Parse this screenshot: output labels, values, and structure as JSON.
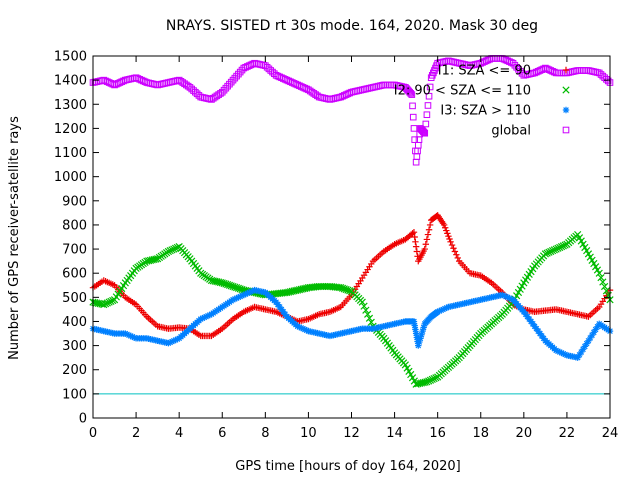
{
  "chart_data": {
    "type": "scatter",
    "title": "NRAYS. SISTED rt 30s mode. 164, 2020. Mask 30 deg",
    "xlabel": "GPS time [hours of doy 164, 2020]",
    "ylabel": "Number of GPS receiver-satellite rays",
    "xlim": [
      0,
      24
    ],
    "ylim": [
      0,
      1500
    ],
    "xticks": [
      "0",
      "2",
      "4",
      "6",
      "8",
      "10",
      "12",
      "14",
      "16",
      "18",
      "20",
      "22",
      "24"
    ],
    "yticks": [
      "0",
      "100",
      "200",
      "300",
      "400",
      "500",
      "600",
      "700",
      "800",
      "900",
      "1000",
      "1100",
      "1200",
      "1300",
      "1400",
      "1500"
    ],
    "grid": false,
    "legend_position": "top-right",
    "threshold_line": {
      "y": 100,
      "color": "#00c0c0"
    },
    "series": [
      {
        "name": "I1: SZA <= 90",
        "legend_label": "I1: SZA <= 90",
        "marker": "+",
        "color": "#ee0000",
        "x": [
          0,
          0.5,
          1,
          1.5,
          2,
          2.5,
          3,
          3.5,
          4,
          4.5,
          5,
          5.5,
          6,
          6.5,
          7,
          7.5,
          8,
          8.5,
          9,
          9.5,
          10,
          10.5,
          11,
          11.5,
          12,
          12.5,
          13,
          13.5,
          14,
          14.5,
          14.9,
          15.1,
          15.4,
          15.7,
          16,
          16.3,
          16.6,
          17,
          17.5,
          18,
          18.5,
          19,
          19.5,
          20,
          20.5,
          21,
          21.5,
          22,
          22.5,
          23,
          23.5,
          24
        ],
        "y": [
          540,
          570,
          550,
          500,
          470,
          420,
          380,
          370,
          375,
          370,
          340,
          340,
          370,
          410,
          440,
          460,
          450,
          440,
          420,
          400,
          410,
          430,
          440,
          460,
          510,
          580,
          650,
          690,
          720,
          740,
          770,
          650,
          700,
          820,
          840,
          800,
          730,
          650,
          600,
          590,
          560,
          520,
          470,
          450,
          440,
          445,
          450,
          440,
          430,
          420,
          460,
          530
        ]
      },
      {
        "name": "I2: 90 < SZA <= 110",
        "legend_label": "I2: 90 < SZA <= 110",
        "marker": "x",
        "color": "#00bb00",
        "x": [
          0,
          0.5,
          1,
          1.5,
          2,
          2.5,
          3,
          3.5,
          4,
          4.5,
          5,
          5.5,
          6,
          6.5,
          7,
          7.5,
          8,
          8.5,
          9,
          9.5,
          10,
          10.5,
          11,
          11.5,
          12,
          12.5,
          13,
          13.5,
          14,
          14.5,
          15,
          15.5,
          16,
          16.5,
          17,
          17.5,
          18,
          18.5,
          19,
          19.5,
          20,
          20.5,
          21,
          21.5,
          22,
          22.5,
          23,
          23.5,
          24
        ],
        "y": [
          480,
          470,
          490,
          560,
          620,
          650,
          660,
          690,
          710,
          660,
          600,
          570,
          560,
          545,
          530,
          520,
          510,
          515,
          520,
          530,
          540,
          545,
          545,
          540,
          525,
          480,
          380,
          330,
          270,
          220,
          140,
          150,
          170,
          210,
          250,
          300,
          350,
          390,
          430,
          480,
          560,
          630,
          680,
          700,
          720,
          760,
          680,
          600,
          490
        ]
      },
      {
        "name": "I3: SZA > 110",
        "legend_label": "I3: SZA > 110",
        "marker": "*",
        "color": "#0080ff",
        "x": [
          0,
          0.5,
          1,
          1.5,
          2,
          2.5,
          3,
          3.5,
          4,
          4.5,
          5,
          5.5,
          6,
          6.5,
          7,
          7.5,
          8,
          8.5,
          9,
          9.5,
          10,
          10.5,
          11,
          11.5,
          12,
          12.5,
          13,
          13.5,
          14,
          14.5,
          14.9,
          15.1,
          15.4,
          15.7,
          16,
          16.5,
          17,
          17.5,
          18,
          18.5,
          19,
          19.5,
          20,
          20.5,
          21,
          21.5,
          22,
          22.5,
          23,
          23.5,
          24
        ],
        "y": [
          370,
          360,
          350,
          350,
          330,
          330,
          320,
          310,
          330,
          370,
          410,
          430,
          460,
          490,
          510,
          530,
          520,
          480,
          420,
          380,
          360,
          350,
          340,
          350,
          360,
          370,
          370,
          380,
          390,
          400,
          400,
          300,
          390,
          420,
          440,
          460,
          470,
          480,
          490,
          500,
          510,
          490,
          440,
          380,
          320,
          280,
          260,
          250,
          320,
          390,
          360
        ]
      },
      {
        "name": "global",
        "legend_label": "global",
        "marker": "square",
        "color": "#cc00ff",
        "x": [
          0,
          0.5,
          1,
          1.5,
          2,
          2.5,
          3,
          3.5,
          4,
          4.5,
          5,
          5.5,
          6,
          6.5,
          7,
          7.5,
          8,
          8.5,
          9,
          9.5,
          10,
          10.5,
          11,
          11.5,
          12,
          12.5,
          13,
          13.5,
          14,
          14.5,
          14.8,
          15,
          15.2,
          15.4,
          15.7,
          16,
          16.5,
          17,
          17.5,
          18,
          18.5,
          19,
          19.5,
          20,
          20.5,
          21,
          21.5,
          22,
          22.5,
          23,
          23.5,
          24
        ],
        "y": [
          1390,
          1400,
          1380,
          1400,
          1410,
          1390,
          1380,
          1390,
          1400,
          1370,
          1330,
          1320,
          1350,
          1400,
          1450,
          1470,
          1460,
          1420,
          1400,
          1380,
          1360,
          1330,
          1320,
          1330,
          1350,
          1360,
          1370,
          1380,
          1380,
          1370,
          1340,
          1060,
          1200,
          1180,
          1410,
          1470,
          1480,
          1470,
          1460,
          1470,
          1490,
          1490,
          1470,
          1420,
          1430,
          1450,
          1430,
          1430,
          1440,
          1440,
          1430,
          1390
        ]
      }
    ]
  }
}
